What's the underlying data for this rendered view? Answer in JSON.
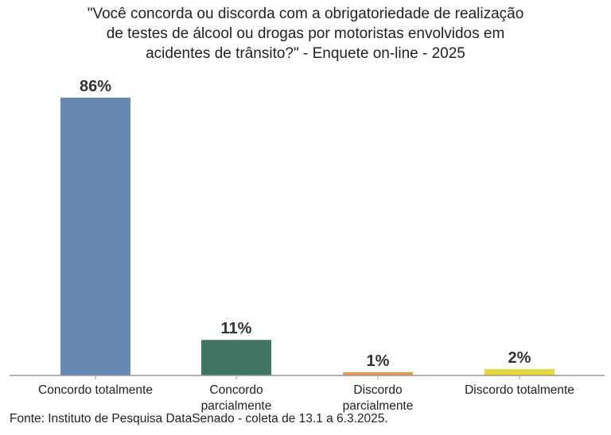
{
  "chart_data": {
    "type": "bar",
    "title": "\"Você concorda ou discorda com a obrigatoriedade de realização\nde testes de álcool ou drogas por motoristas envolvidos em\nacidentes de trânsito?\" - Enquete on-line - 2025",
    "categories": [
      "Concordo totalmente",
      "Concordo\nparcialmente",
      "Discordo\nparcialmente",
      "Discordo totalmente"
    ],
    "values": [
      86,
      11,
      1,
      2
    ],
    "data_labels": [
      "86%",
      "11%",
      "1%",
      "2%"
    ],
    "colors": [
      "#6589b2",
      "#417461",
      "#f39240",
      "#e6d93b"
    ],
    "xlabel": "",
    "ylabel": "",
    "ylim": [
      0,
      100
    ],
    "grid": false
  },
  "source": "Fonte: Instituto de Pesquisa DataSenado - coleta de 13.1 a 6.3.2025."
}
